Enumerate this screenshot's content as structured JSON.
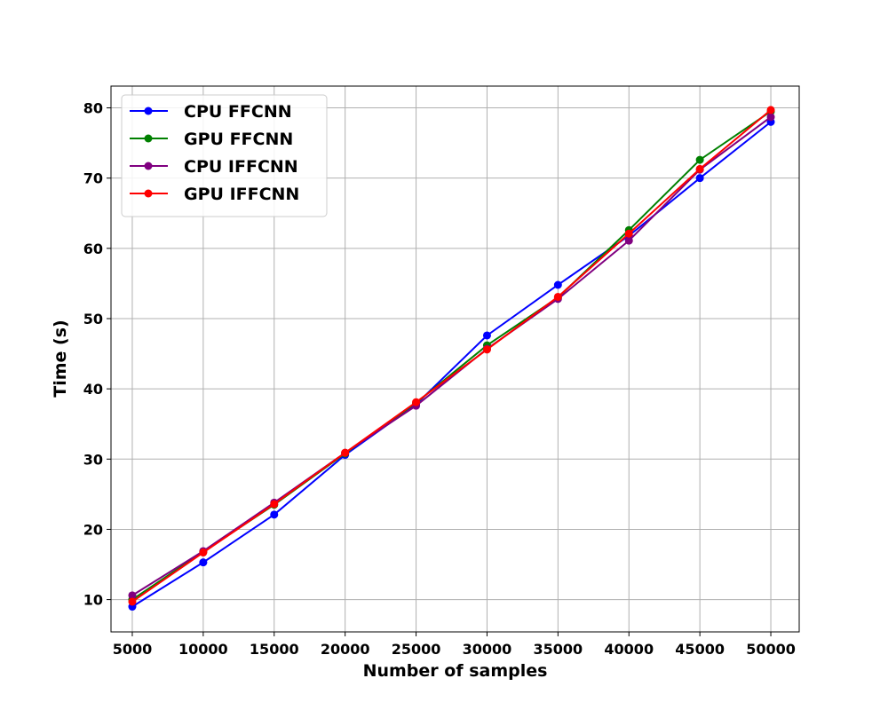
{
  "chart_data": {
    "type": "line",
    "title": "",
    "xlabel": "Number of samples",
    "ylabel": "Time (s)",
    "x": [
      5000,
      10000,
      15000,
      20000,
      25000,
      30000,
      35000,
      40000,
      45000,
      50000
    ],
    "xlim": [
      3500,
      52000
    ],
    "ylim": [
      5.4,
      83.1
    ],
    "xticks": [
      5000,
      10000,
      15000,
      20000,
      25000,
      30000,
      35000,
      40000,
      45000,
      50000
    ],
    "yticks": [
      10,
      20,
      30,
      40,
      50,
      60,
      70,
      80
    ],
    "grid": true,
    "legend_position": "top-left",
    "series": [
      {
        "name": "CPU FFCNN",
        "color": "#0000ff",
        "values": [
          9.0,
          15.3,
          22.1,
          30.6,
          37.8,
          47.6,
          54.8,
          61.8,
          70.0,
          78.0
        ]
      },
      {
        "name": "GPU FFCNN",
        "color": "#008000",
        "values": [
          10.0,
          16.8,
          23.5,
          30.8,
          38.0,
          46.2,
          53.0,
          62.6,
          72.6,
          79.5
        ]
      },
      {
        "name": "CPU IFFCNN",
        "color": "#800080",
        "values": [
          10.6,
          16.9,
          23.8,
          30.9,
          37.6,
          45.7,
          52.8,
          61.1,
          71.2,
          78.7
        ]
      },
      {
        "name": "GPU IFFCNN",
        "color": "#ff0000",
        "values": [
          9.7,
          16.7,
          23.6,
          30.9,
          38.1,
          45.6,
          53.1,
          62.1,
          71.3,
          79.7
        ]
      }
    ]
  }
}
